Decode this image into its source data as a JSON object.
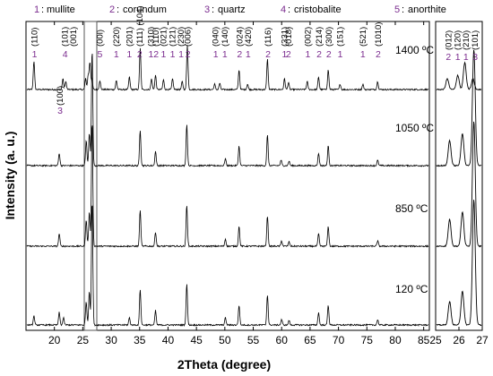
{
  "chart_data": {
    "type": "line",
    "xlabel": "2Theta (degree)",
    "ylabel": "Intensity (a. u.)",
    "main_xlim": [
      15,
      86
    ],
    "main_ticks": [
      15,
      20,
      25,
      30,
      35,
      40,
      45,
      50,
      55,
      60,
      65,
      70,
      75,
      80,
      85
    ],
    "zoom_xlim": [
      25,
      27
    ],
    "zoom_ticks": [
      25,
      26,
      27
    ],
    "grid": false,
    "legend_position": "top",
    "legend": [
      {
        "num": "1",
        "name": "mullite"
      },
      {
        "num": "2",
        "name": "corundum"
      },
      {
        "num": "3",
        "name": "quartz"
      },
      {
        "num": "4",
        "name": "cristobalite"
      },
      {
        "num": "5",
        "name": "anorthite"
      }
    ],
    "series": [
      {
        "name": "1400 ºC",
        "peaks": [
          {
            "x": 16.4,
            "h": 32
          },
          {
            "x": 21.5,
            "h": 12
          },
          {
            "x": 22.0,
            "h": 9
          },
          {
            "x": 25.5,
            "h": 12
          },
          {
            "x": 25.95,
            "h": 16
          },
          {
            "x": 26.25,
            "h": 30
          },
          {
            "x": 26.6,
            "h": 12
          },
          {
            "x": 28.0,
            "h": 10
          },
          {
            "x": 30.9,
            "h": 10
          },
          {
            "x": 33.2,
            "h": 14
          },
          {
            "x": 35.1,
            "h": 46
          },
          {
            "x": 37.1,
            "h": 12
          },
          {
            "x": 37.8,
            "h": 16
          },
          {
            "x": 39.2,
            "h": 11
          },
          {
            "x": 40.8,
            "h": 12
          },
          {
            "x": 42.5,
            "h": 9
          },
          {
            "x": 43.4,
            "h": 50
          },
          {
            "x": 48.2,
            "h": 6
          },
          {
            "x": 49.1,
            "h": 7
          },
          {
            "x": 52.5,
            "h": 22
          },
          {
            "x": 54.0,
            "h": 6
          },
          {
            "x": 57.5,
            "h": 34
          },
          {
            "x": 60.5,
            "h": 12
          },
          {
            "x": 61.2,
            "h": 8
          },
          {
            "x": 64.5,
            "h": 9
          },
          {
            "x": 66.5,
            "h": 14
          },
          {
            "x": 68.2,
            "h": 22
          },
          {
            "x": 70.3,
            "h": 6
          },
          {
            "x": 74.3,
            "h": 6
          },
          {
            "x": 76.9,
            "h": 9
          }
        ]
      },
      {
        "name": "1050 ºC",
        "peaks": [
          {
            "x": 20.85,
            "h": 14
          },
          {
            "x": 25.6,
            "h": 28
          },
          {
            "x": 26.15,
            "h": 36
          },
          {
            "x": 26.64,
            "h": 130
          },
          {
            "x": 35.1,
            "h": 40
          },
          {
            "x": 37.8,
            "h": 16
          },
          {
            "x": 43.3,
            "h": 46
          },
          {
            "x": 50.1,
            "h": 8
          },
          {
            "x": 52.5,
            "h": 22
          },
          {
            "x": 57.5,
            "h": 34
          },
          {
            "x": 59.9,
            "h": 6
          },
          {
            "x": 61.3,
            "h": 5
          },
          {
            "x": 66.5,
            "h": 14
          },
          {
            "x": 68.2,
            "h": 22
          },
          {
            "x": 76.9,
            "h": 6
          }
        ]
      },
      {
        "name": "850 ºC",
        "peaks": [
          {
            "x": 20.85,
            "h": 14
          },
          {
            "x": 25.6,
            "h": 30
          },
          {
            "x": 26.15,
            "h": 38
          },
          {
            "x": 26.64,
            "h": 140
          },
          {
            "x": 35.1,
            "h": 40
          },
          {
            "x": 37.8,
            "h": 16
          },
          {
            "x": 43.3,
            "h": 46
          },
          {
            "x": 50.1,
            "h": 8
          },
          {
            "x": 52.5,
            "h": 22
          },
          {
            "x": 57.5,
            "h": 34
          },
          {
            "x": 60.0,
            "h": 6
          },
          {
            "x": 61.3,
            "h": 5
          },
          {
            "x": 66.5,
            "h": 14
          },
          {
            "x": 68.2,
            "h": 22
          },
          {
            "x": 76.9,
            "h": 6
          }
        ]
      },
      {
        "name": "120 ºC",
        "peaks": [
          {
            "x": 16.4,
            "h": 10
          },
          {
            "x": 20.85,
            "h": 14
          },
          {
            "x": 21.6,
            "h": 8
          },
          {
            "x": 25.6,
            "h": 26
          },
          {
            "x": 26.15,
            "h": 38
          },
          {
            "x": 26.64,
            "h": 140
          },
          {
            "x": 33.2,
            "h": 8
          },
          {
            "x": 35.1,
            "h": 40
          },
          {
            "x": 37.8,
            "h": 16
          },
          {
            "x": 43.3,
            "h": 46
          },
          {
            "x": 50.1,
            "h": 8
          },
          {
            "x": 52.5,
            "h": 22
          },
          {
            "x": 57.5,
            "h": 34
          },
          {
            "x": 60.0,
            "h": 6
          },
          {
            "x": 61.3,
            "h": 5
          },
          {
            "x": 66.5,
            "h": 14
          },
          {
            "x": 68.2,
            "h": 22
          },
          {
            "x": 76.9,
            "h": 6
          }
        ]
      }
    ],
    "peak_annotations": [
      {
        "x": 16.5,
        "hkl": "(110)",
        "phase": "1"
      },
      {
        "x": 21.9,
        "hkl": "(101)",
        "phase": "4"
      },
      {
        "x": 23.4,
        "hkl": "(001)",
        "phase": ""
      },
      {
        "x": 28.0,
        "hkl": "(00l)",
        "phase": "5"
      },
      {
        "x": 30.9,
        "hkl": "(220)",
        "phase": "1"
      },
      {
        "x": 33.2,
        "hkl": "(201)",
        "phase": "1"
      },
      {
        "x": 35.0,
        "hkl": "(111) (104)",
        "phase": "2"
      },
      {
        "x": 37.0,
        "hkl": "(310)",
        "phase": "1"
      },
      {
        "x": 37.9,
        "hkl": "(110)",
        "phase": "2"
      },
      {
        "x": 39.2,
        "hkl": "(021)",
        "phase": "1"
      },
      {
        "x": 40.8,
        "hkl": "(121)",
        "phase": "1"
      },
      {
        "x": 42.3,
        "hkl": "(230)",
        "phase": "1"
      },
      {
        "x": 43.5,
        "hkl": "(006)",
        "phase": "2"
      },
      {
        "x": 48.4,
        "hkl": "(040)",
        "phase": "1"
      },
      {
        "x": 50.0,
        "hkl": "(140)",
        "phase": "1"
      },
      {
        "x": 52.6,
        "hkl": "(024)",
        "phase": "2"
      },
      {
        "x": 54.1,
        "hkl": "(420)",
        "phase": "1"
      },
      {
        "x": 57.6,
        "hkl": "(116)",
        "phase": "2"
      },
      {
        "x": 60.5,
        "hkl": "(331)",
        "phase": "1"
      },
      {
        "x": 61.2,
        "hkl": "(018)",
        "phase": "2"
      },
      {
        "x": 64.6,
        "hkl": "(002)",
        "phase": "1"
      },
      {
        "x": 66.6,
        "hkl": "(214)",
        "phase": "2"
      },
      {
        "x": 68.3,
        "hkl": "(300)",
        "phase": "2"
      },
      {
        "x": 70.3,
        "hkl": "(151)",
        "phase": "1"
      },
      {
        "x": 74.3,
        "hkl": "(521)",
        "phase": "1"
      },
      {
        "x": 77.0,
        "hkl": "(1010)",
        "phase": "2"
      },
      {
        "x": 21.0,
        "hkl": "(100)",
        "phase": "3"
      }
    ],
    "zoom_annotations": [
      {
        "x": 25.55,
        "hkl": "(012)",
        "phase": "2"
      },
      {
        "x": 25.95,
        "hkl": "(120)",
        "phase": "1"
      },
      {
        "x": 26.3,
        "hkl": "(210)",
        "phase": "1"
      },
      {
        "x": 26.7,
        "hkl": "(101)",
        "phase": "3"
      }
    ]
  }
}
